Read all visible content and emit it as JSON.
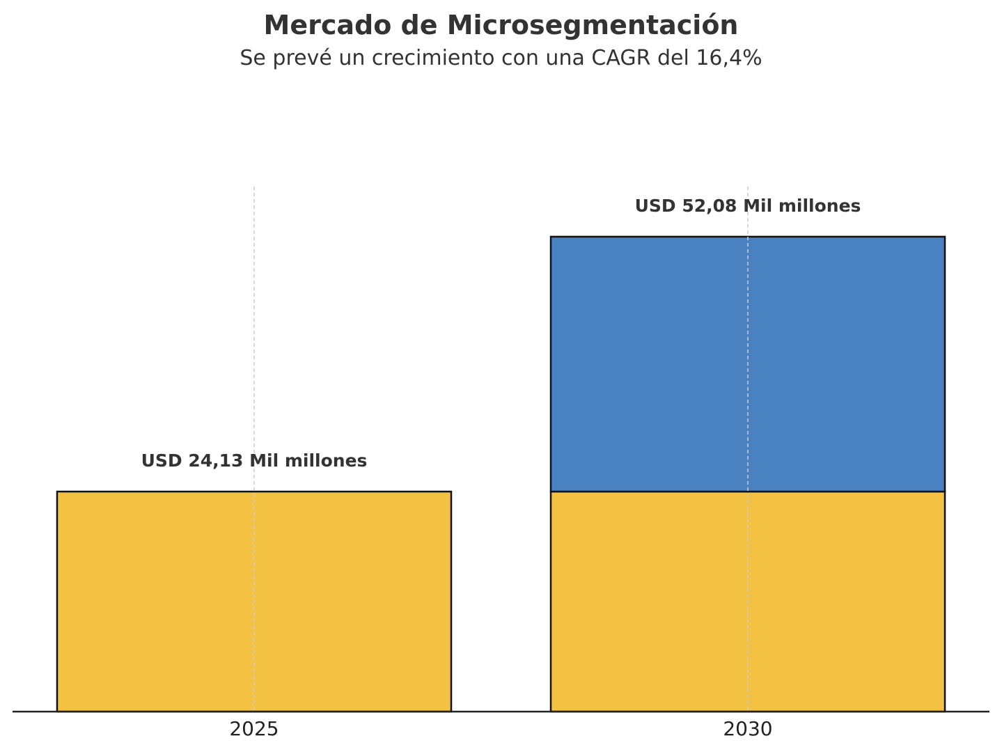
{
  "chart_data": {
    "type": "bar",
    "stacked": true,
    "title": "Mercado de Microsegmentación",
    "subtitle": "Se prevé un crecimiento con una CAGR del 16,4%",
    "categories": [
      "2025",
      "2030"
    ],
    "series": [
      {
        "values": [
          24.13,
          24.13
        ],
        "color": "#F4C242"
      },
      {
        "values": [
          0,
          27.95
        ],
        "color": "#4A82C1"
      }
    ],
    "data_labels": [
      "USD 24,13 Mil millones",
      "USD 52,08 Mil millones"
    ],
    "totals": [
      24.13,
      52.08
    ],
    "xlabel": "",
    "ylabel": "",
    "ylim": [
      0,
      62
    ],
    "grid": "vertical dashed",
    "legend": "none",
    "colors": {
      "text": "#333333",
      "axis": "#222222",
      "grid": "#cccccc",
      "bar_edge": "#111111"
    }
  }
}
